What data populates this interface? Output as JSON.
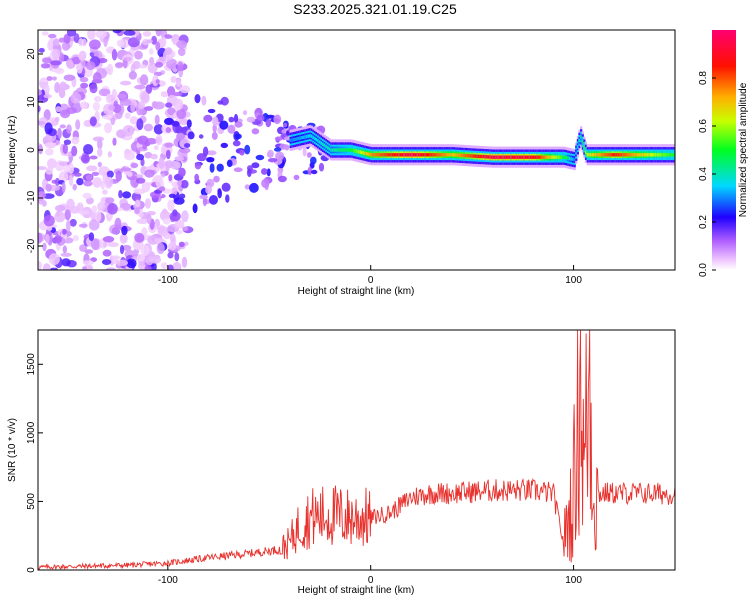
{
  "title": "S233.2025.321.01.19.C25",
  "chart_data": [
    {
      "type": "heatmap",
      "xlabel": "Height of straight line (km)",
      "ylabel": "Frequency (Hz)",
      "xlim": [
        -164,
        150
      ],
      "ylim": [
        -25,
        25
      ],
      "x_ticks": [
        -100,
        0,
        100
      ],
      "y_ticks": [
        -20,
        -10,
        0,
        10,
        20
      ],
      "colorbar": {
        "label": "Normalized spectral amplitude",
        "range": [
          0,
          1
        ],
        "ticks": [
          0.0,
          0.2,
          0.4,
          0.6,
          0.8
        ],
        "colormap": [
          "#ffffff",
          "#ff00ff",
          "#7a00ff",
          "#0000ff",
          "#00ffff",
          "#00ff00",
          "#ffff00",
          "#ff8000",
          "#ff0000",
          "#ff0066"
        ]
      },
      "ridge": {
        "description_points_x": [
          -40,
          -30,
          -20,
          -10,
          0,
          20,
          40,
          60,
          80,
          95,
          100,
          103,
          106,
          110,
          120,
          140,
          150
        ],
        "frequency_hz": [
          2,
          3,
          0,
          0,
          -1,
          -1,
          -1,
          -1.5,
          -1.5,
          -1.5,
          -2,
          3,
          -1,
          -1,
          -1,
          -1,
          -1
        ],
        "max_amplitude": [
          0.3,
          0.35,
          0.4,
          0.5,
          0.75,
          0.95,
          0.7,
          0.95,
          0.9,
          0.5,
          0.3,
          0.4,
          0.6,
          0.7,
          0.85,
          0.6,
          0.5
        ]
      },
      "noise_region_x": [
        -164,
        -100
      ],
      "grid": false
    },
    {
      "type": "line",
      "xlabel": "Height of straight line (km)",
      "ylabel": "SNR (10 * v/v)",
      "xlim": [
        -164,
        150
      ],
      "ylim": [
        0,
        1750
      ],
      "x_ticks": [
        -100,
        0,
        100
      ],
      "y_ticks": [
        0,
        500,
        1000,
        1500
      ],
      "color": "#e8302c",
      "envelope": {
        "x": [
          -164,
          -120,
          -100,
          -80,
          -60,
          -45,
          -40,
          -35,
          -30,
          -20,
          -10,
          0,
          10,
          20,
          30,
          40,
          60,
          80,
          90,
          95,
          100,
          103,
          105,
          108,
          110,
          115,
          130,
          150
        ],
        "y": [
          20,
          35,
          50,
          90,
          120,
          150,
          200,
          330,
          380,
          400,
          380,
          380,
          420,
          530,
          560,
          560,
          580,
          580,
          560,
          200,
          550,
          1750,
          700,
          1450,
          550,
          560,
          560,
          555
        ]
      },
      "grid": false
    }
  ]
}
